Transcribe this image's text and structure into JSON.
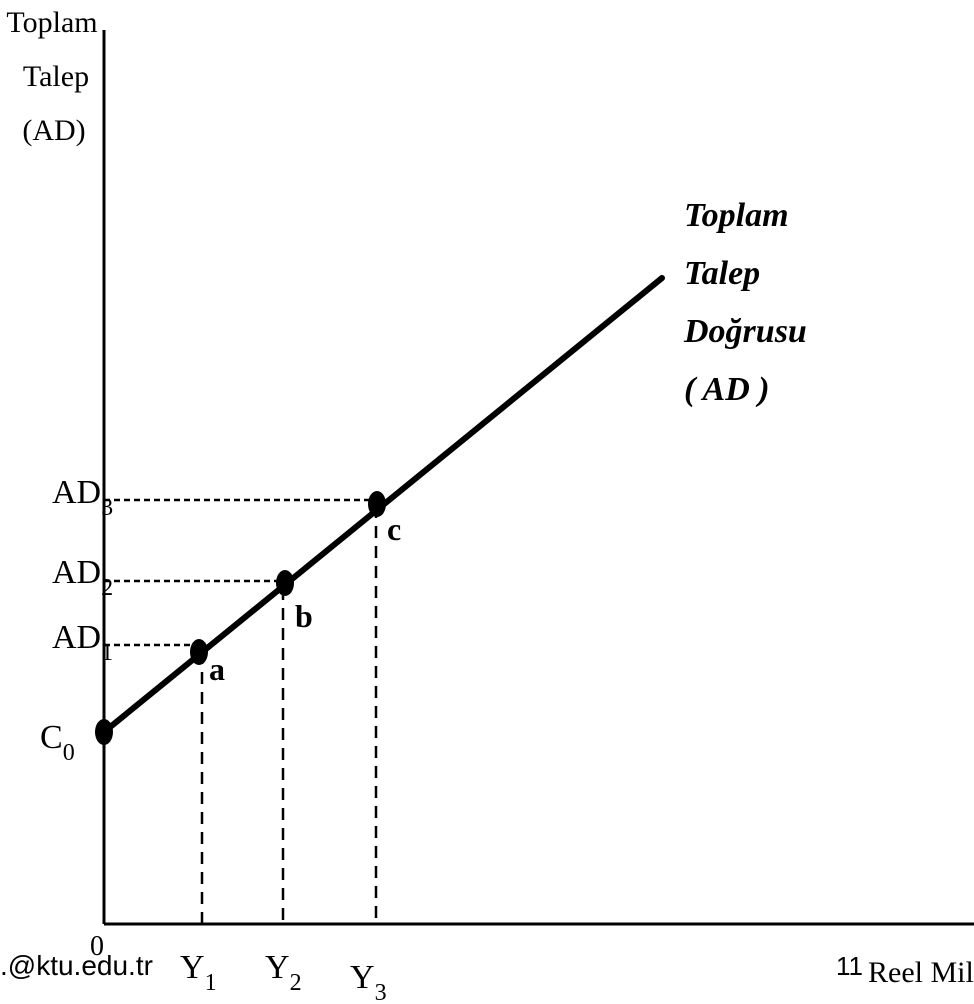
{
  "y_axis": {
    "title_lines": [
      "Toplam",
      "Talep",
      "(AD)"
    ]
  },
  "x_axis": {
    "title": "Reel Milli",
    "origin": "0",
    "ticks": [
      {
        "base": "Y",
        "sub": "1"
      },
      {
        "base": "Y",
        "sub": "2"
      },
      {
        "base": "Y",
        "sub": "3"
      }
    ]
  },
  "y_ticks": [
    {
      "base": "C",
      "sub": "0"
    },
    {
      "base": "AD",
      "sub": "1"
    },
    {
      "base": "AD",
      "sub": "2"
    },
    {
      "base": "AD",
      "sub": "3"
    }
  ],
  "points": [
    {
      "label": ""
    },
    {
      "label": "a"
    },
    {
      "label": "b"
    },
    {
      "label": "c"
    }
  ],
  "curve_label_lines": [
    "Toplam",
    "Talep",
    "Doğrusu",
    "( AD )"
  ],
  "footer": {
    "email_fragment": ".@ktu.edu.tr",
    "page_number": "11"
  }
}
